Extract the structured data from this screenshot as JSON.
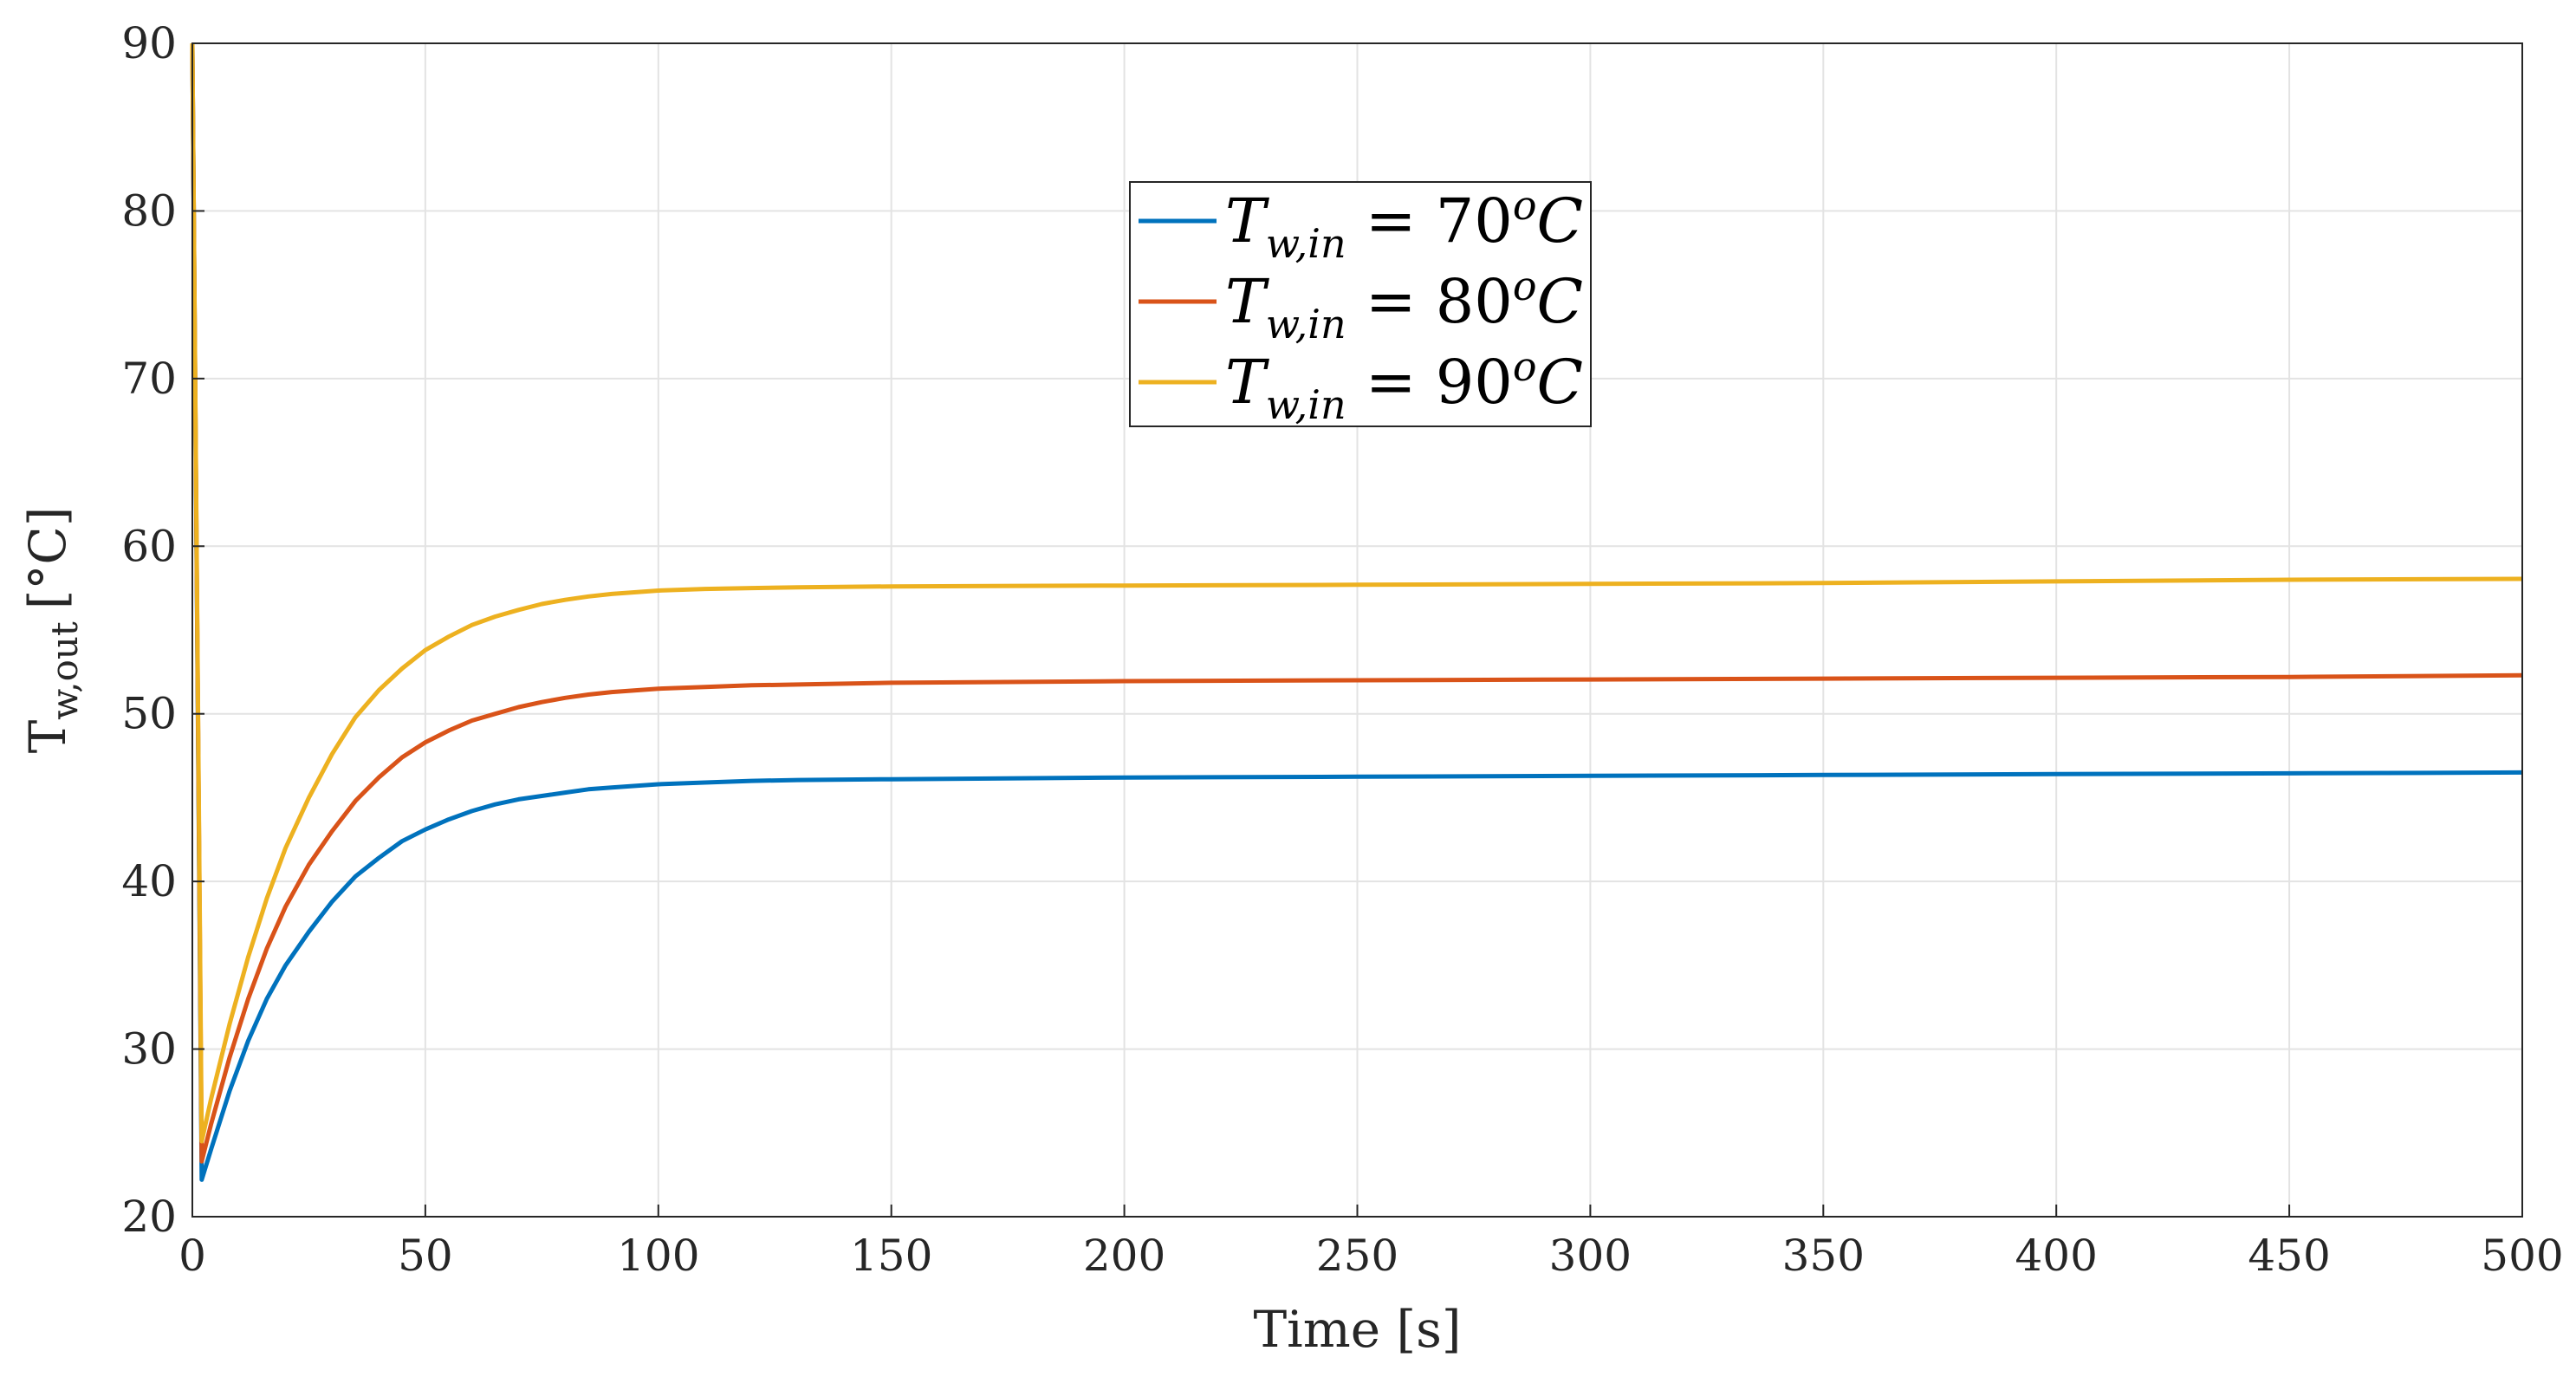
{
  "chart_data": {
    "type": "line",
    "title": "",
    "xlabel": "Time [s]",
    "ylabel": {
      "main": "T",
      "sub": "w,out",
      "unit": "[°C]"
    },
    "xlim": [
      0,
      500
    ],
    "ylim": [
      20,
      90
    ],
    "xticks": [
      0,
      50,
      100,
      150,
      200,
      250,
      300,
      350,
      400,
      450,
      500
    ],
    "yticks": [
      20,
      30,
      40,
      50,
      60,
      70,
      80,
      90
    ],
    "grid": true,
    "legend_position": "top-center",
    "x": [
      0,
      2,
      4,
      8,
      12,
      16,
      20,
      25,
      30,
      35,
      40,
      45,
      50,
      55,
      60,
      65,
      70,
      75,
      80,
      85,
      90,
      100,
      110,
      120,
      130,
      150,
      200,
      250,
      300,
      350,
      400,
      450,
      500
    ],
    "series": [
      {
        "name": "T_w,in = 70°C",
        "legend": {
          "base": "T",
          "sub": "w,in",
          "value": " = 70",
          "sup": "o",
          "unit": "C"
        },
        "color": "#0072BD",
        "values": [
          90,
          22.2,
          24.0,
          27.5,
          30.5,
          33.0,
          35.0,
          37.0,
          38.8,
          40.3,
          41.4,
          42.4,
          43.1,
          43.7,
          44.2,
          44.6,
          44.9,
          45.1,
          45.3,
          45.5,
          45.6,
          45.8,
          45.9,
          46.0,
          46.05,
          46.1,
          46.2,
          46.25,
          46.3,
          46.35,
          46.4,
          46.45,
          46.5
        ]
      },
      {
        "name": "T_w,in = 80°C",
        "legend": {
          "base": "T",
          "sub": "w,in",
          "value": " = 80",
          "sup": "o",
          "unit": "C"
        },
        "color": "#D95319",
        "values": [
          90,
          23.3,
          25.5,
          29.5,
          33.0,
          36.0,
          38.5,
          41.0,
          43.0,
          44.8,
          46.2,
          47.4,
          48.3,
          49.0,
          49.6,
          50.0,
          50.4,
          50.7,
          50.95,
          51.15,
          51.3,
          51.5,
          51.6,
          51.7,
          51.75,
          51.85,
          51.95,
          52.0,
          52.05,
          52.1,
          52.15,
          52.2,
          52.3
        ]
      },
      {
        "name": "T_w,in = 90°C",
        "legend": {
          "base": "T",
          "sub": "w,in",
          "value": " = 90",
          "sup": "o",
          "unit": "C"
        },
        "color": "#EDB120",
        "values": [
          90,
          24.5,
          27.0,
          31.5,
          35.5,
          39.0,
          42.0,
          45.0,
          47.6,
          49.8,
          51.4,
          52.7,
          53.8,
          54.6,
          55.3,
          55.8,
          56.2,
          56.55,
          56.8,
          57.0,
          57.15,
          57.35,
          57.45,
          57.5,
          57.55,
          57.6,
          57.65,
          57.7,
          57.75,
          57.8,
          57.9,
          58.0,
          58.05
        ]
      }
    ]
  }
}
